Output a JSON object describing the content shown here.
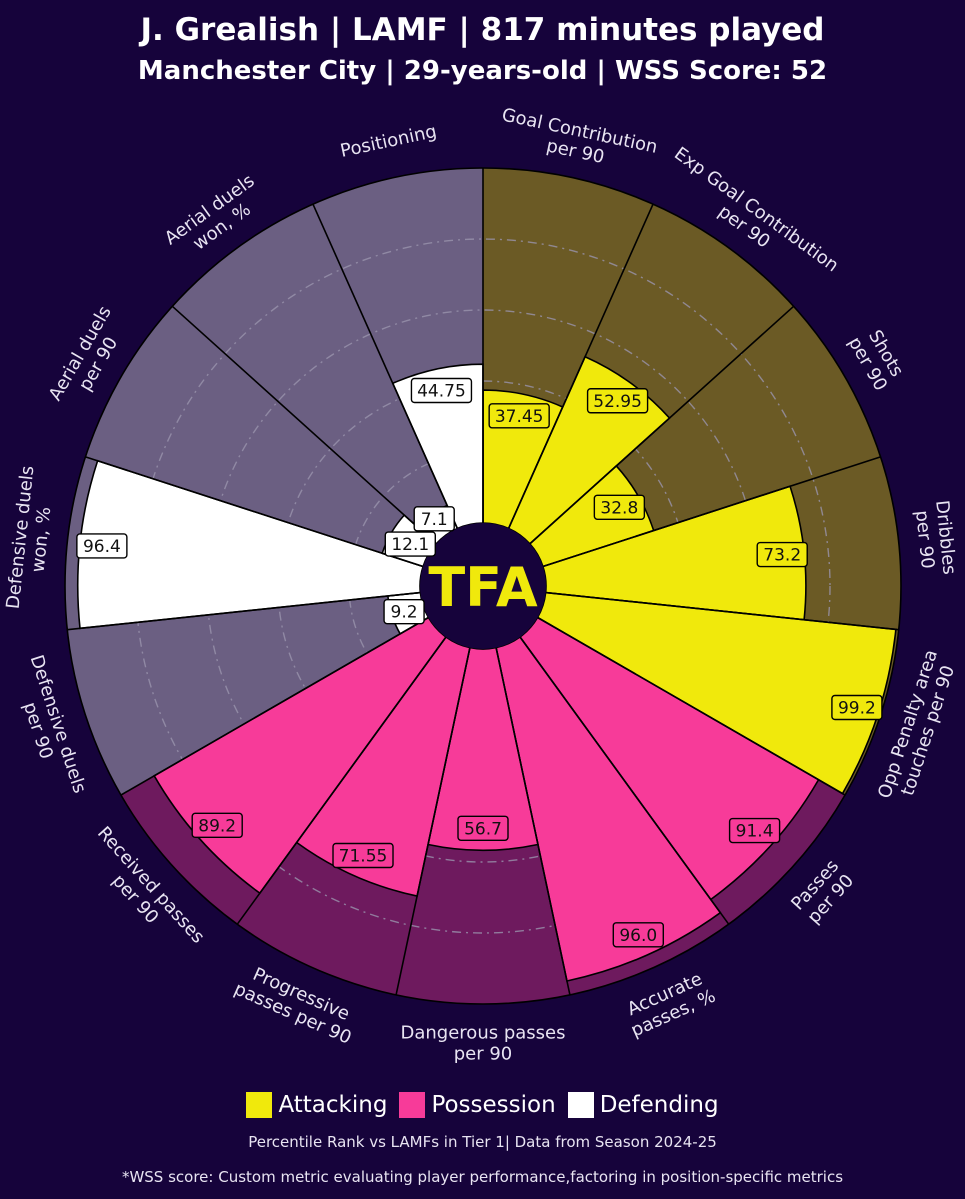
{
  "header": {
    "title": "J. Grealish | LAMF | 817 minutes played",
    "subtitle": "Manchester City | 29-years-old | WSS Score: 52"
  },
  "center_logo": "TFA",
  "colors": {
    "background": "#16033b",
    "attacking": "#f0e90c",
    "possession": "#f73b99",
    "defending": "#ffffff",
    "attacking_bg": "#6b5a25",
    "possession_bg": "#6e1a5e",
    "defending_bg": "#6b5f82"
  },
  "legend": [
    {
      "label": "Attacking",
      "color": "#f0e90c"
    },
    {
      "label": "Possession",
      "color": "#f73b99"
    },
    {
      "label": "Defending",
      "color": "#ffffff"
    }
  ],
  "footer": {
    "line1": "Percentile Rank vs LAMFs in Tier 1| Data from Season 2024-25",
    "line2": "*WSS score: Custom metric evaluating player performance,factoring in position-specific metrics"
  },
  "chart_data": {
    "type": "radar-bar",
    "scale": [
      0,
      100
    ],
    "grid": true,
    "legend_position": "bottom",
    "metrics": [
      {
        "label": [
          "Goal Contribution",
          "per 90"
        ],
        "value": 37.45,
        "group": "Attacking"
      },
      {
        "label": [
          "Exp Goal Contribution",
          "per 90"
        ],
        "value": 52.95,
        "group": "Attacking"
      },
      {
        "label": [
          "Shots",
          "per 90"
        ],
        "value": 32.8,
        "group": "Attacking"
      },
      {
        "label": [
          "Dribbles",
          "per 90"
        ],
        "value": 73.2,
        "group": "Attacking"
      },
      {
        "label": [
          "Opp Penalty area",
          "touches per 90"
        ],
        "value": 99.2,
        "group": "Attacking"
      },
      {
        "label": [
          "Passes",
          "per 90"
        ],
        "value": 91.4,
        "group": "Possession"
      },
      {
        "label": [
          "Accurate",
          "passes, %"
        ],
        "value": 96.0,
        "group": "Possession"
      },
      {
        "label": [
          "Dangerous passes",
          "per 90"
        ],
        "value": 56.7,
        "group": "Possession"
      },
      {
        "label": [
          "Progressive",
          "passes per 90"
        ],
        "value": 71.55,
        "group": "Possession"
      },
      {
        "label": [
          "Received passes",
          "per 90"
        ],
        "value": 89.2,
        "group": "Possession"
      },
      {
        "label": [
          "Defensive duels",
          "per 90"
        ],
        "value": 9.2,
        "group": "Defending"
      },
      {
        "label": [
          "Defensive duels",
          "won, %"
        ],
        "value": 96.4,
        "group": "Defending"
      },
      {
        "label": [
          "Aerial duels",
          "per 90"
        ],
        "value": 12.1,
        "group": "Defending"
      },
      {
        "label": [
          "Aerial duels",
          "won, %"
        ],
        "value": 7.1,
        "group": "Defending"
      },
      {
        "label": [
          "Positioning"
        ],
        "value": 44.75,
        "group": "Defending"
      }
    ]
  }
}
